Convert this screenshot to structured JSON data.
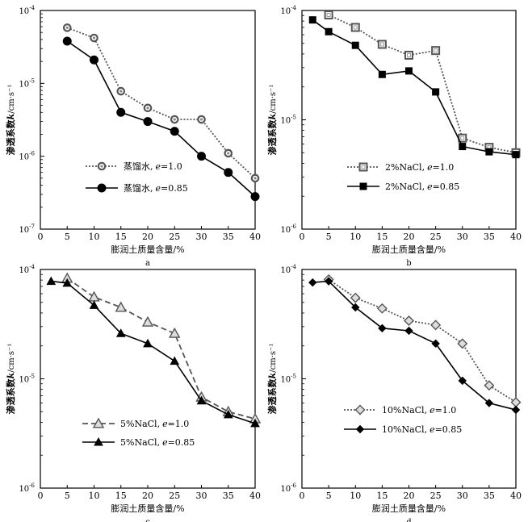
{
  "chart_data": [
    {
      "type": "line",
      "panel_label": "a",
      "xlabel": "膨润土质量含量/%",
      "ylabel_prefix": "渗透系数",
      "ylabel_var": "k",
      "ylabel_unit": "/cm·s⁻¹",
      "yscale": "log",
      "xlim": [
        0,
        40
      ],
      "ylim": [
        1e-07,
        0.0001
      ],
      "xticks": [
        0,
        5,
        10,
        15,
        20,
        25,
        30,
        35,
        40
      ],
      "yticks": [
        1e-07,
        1e-06,
        1e-05,
        0.0001
      ],
      "yticks_label": [
        {
          "base": "10",
          "exp": "-7"
        },
        {
          "base": "10",
          "exp": "-6"
        },
        {
          "base": "10",
          "exp": "-5"
        },
        {
          "base": "10",
          "exp": "-4"
        }
      ],
      "legend_position": "lower-left",
      "series": [
        {
          "name_text": "蒸馏水,",
          "name_var": "e",
          "name_val": "=1.0",
          "marker": "open-circle",
          "line": "dotted",
          "color": "#555555",
          "x": [
            5,
            10,
            15,
            20,
            25,
            30,
            35,
            40
          ],
          "values": [
            5.8e-05,
            4.2e-05,
            7.8e-06,
            4.6e-06,
            3.2e-06,
            3.2e-06,
            1.1e-06,
            5e-07
          ]
        },
        {
          "name_text": "蒸馏水,",
          "name_var": "e",
          "name_val": "=0.85",
          "marker": "filled-circle",
          "line": "solid",
          "color": "#000000",
          "x": [
            5,
            10,
            15,
            20,
            25,
            30,
            35,
            40
          ],
          "values": [
            3.8e-05,
            2.1e-05,
            4e-06,
            3e-06,
            2.2e-06,
            1e-06,
            6e-07,
            2.8e-07
          ]
        }
      ]
    },
    {
      "type": "line",
      "panel_label": "b",
      "xlabel": "膨润土质量含量/%",
      "ylabel_prefix": "渗透系数",
      "ylabel_var": "k",
      "ylabel_unit": "/cm·s⁻¹",
      "yscale": "log",
      "xlim": [
        0,
        40
      ],
      "ylim": [
        1e-06,
        0.0001
      ],
      "xticks": [
        0,
        5,
        10,
        15,
        20,
        25,
        30,
        35,
        40
      ],
      "yticks": [
        1e-06,
        1e-05,
        0.0001
      ],
      "yticks_label": [
        {
          "base": "10",
          "exp": "-6"
        },
        {
          "base": "10",
          "exp": "-5"
        },
        {
          "base": "10",
          "exp": "-4"
        }
      ],
      "legend_position": "lower-center",
      "series": [
        {
          "name_text": "2%NaCl,",
          "name_var": "e",
          "name_val": "=1.0",
          "marker": "open-square",
          "line": "dotted",
          "color": "#555555",
          "x": [
            5,
            10,
            15,
            20,
            25,
            30,
            35,
            40
          ],
          "values": [
            9.1e-05,
            7e-05,
            4.9e-05,
            3.9e-05,
            4.3e-05,
            6.8e-06,
            5.6e-06,
            5e-06
          ]
        },
        {
          "name_text": "2%NaCl,",
          "name_var": "e",
          "name_val": "=0.85",
          "marker": "filled-square",
          "line": "solid",
          "color": "#000000",
          "x": [
            2,
            5,
            10,
            15,
            20,
            25,
            30,
            35,
            40
          ],
          "values": [
            8.2e-05,
            6.4e-05,
            4.8e-05,
            2.6e-05,
            2.8e-05,
            1.8e-05,
            5.7e-06,
            5.1e-06,
            4.8e-06
          ]
        }
      ]
    },
    {
      "type": "line",
      "panel_label": "c",
      "xlabel": "膨润土质量含量/%",
      "ylabel_prefix": "渗透系数",
      "ylabel_var": "k",
      "ylabel_unit": "/cm·s⁻¹",
      "yscale": "log",
      "xlim": [
        0,
        40
      ],
      "ylim": [
        1e-06,
        0.0001
      ],
      "xticks": [
        0,
        5,
        10,
        15,
        20,
        25,
        30,
        35,
        40
      ],
      "yticks": [
        1e-06,
        1e-05,
        0.0001
      ],
      "yticks_label": [
        {
          "base": "10",
          "exp": "-6"
        },
        {
          "base": "10",
          "exp": "-5"
        },
        {
          "base": "10",
          "exp": "-4"
        }
      ],
      "legend_position": "lower-left",
      "series": [
        {
          "name_text": "5%NaCl,",
          "name_var": "e",
          "name_val": "=1.0",
          "marker": "open-triangle",
          "line": "dashed",
          "color": "#555555",
          "x": [
            5,
            10,
            15,
            20,
            25,
            30,
            35,
            40
          ],
          "values": [
            8.3e-05,
            5.6e-05,
            4.5e-05,
            3.3e-05,
            2.6e-05,
            6.8e-06,
            5e-06,
            4.3e-06
          ]
        },
        {
          "name_text": "5%NaCl,",
          "name_var": "e",
          "name_val": "=0.85",
          "marker": "filled-triangle",
          "line": "solid",
          "color": "#000000",
          "x": [
            2,
            5,
            10,
            15,
            20,
            25,
            30,
            35,
            40
          ],
          "values": [
            7.8e-05,
            7.5e-05,
            4.7e-05,
            2.6e-05,
            2.1e-05,
            1.45e-05,
            6.3e-06,
            4.7e-06,
            3.9e-06
          ]
        }
      ]
    },
    {
      "type": "line",
      "panel_label": "d",
      "xlabel": "膨润土质量含量/%",
      "ylabel_prefix": "渗透系数",
      "ylabel_var": "k",
      "ylabel_unit": "/cm·s⁻¹",
      "yscale": "log",
      "xlim": [
        0,
        40
      ],
      "ylim": [
        1e-06,
        0.0001
      ],
      "xticks": [
        0,
        5,
        10,
        15,
        20,
        25,
        30,
        35,
        40
      ],
      "yticks": [
        1e-06,
        1e-05,
        0.0001
      ],
      "yticks_label": [
        {
          "base": "10",
          "exp": "-6"
        },
        {
          "base": "10",
          "exp": "-5"
        },
        {
          "base": "10",
          "exp": "-4"
        }
      ],
      "legend_position": "lower-left",
      "series": [
        {
          "name_text": "10%NaCl,",
          "name_var": "e",
          "name_val": "=1.0",
          "marker": "open-diamond",
          "line": "dotted",
          "color": "#555555",
          "x": [
            5,
            10,
            15,
            20,
            25,
            30,
            35,
            40
          ],
          "values": [
            8.1e-05,
            5.5e-05,
            4.4e-05,
            3.4e-05,
            3.1e-05,
            2.1e-05,
            8.7e-06,
            6.1e-06
          ]
        },
        {
          "name_text": "10%NaCl,",
          "name_var": "e",
          "name_val": "=0.85",
          "marker": "filled-diamond",
          "line": "solid",
          "color": "#000000",
          "x": [
            2,
            5,
            10,
            15,
            20,
            25,
            30,
            35,
            40
          ],
          "values": [
            7.6e-05,
            7.8e-05,
            4.5e-05,
            2.9e-05,
            2.75e-05,
            2.1e-05,
            9.6e-06,
            6e-06,
            5.2e-06
          ]
        }
      ]
    }
  ]
}
